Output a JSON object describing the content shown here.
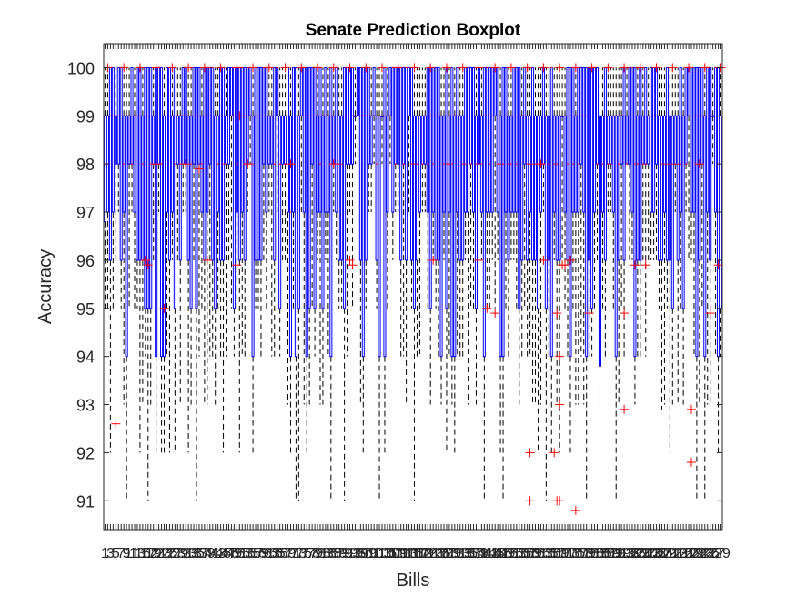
{
  "chart_data": {
    "type": "boxplot",
    "title": "Senate Prediction Boxplot",
    "xlabel": "Bills",
    "ylabel": "Accuracy",
    "ylim": [
      90.4,
      100.5
    ],
    "yticks": [
      91,
      92,
      93,
      94,
      95,
      96,
      97,
      98,
      99,
      100
    ],
    "grid": false,
    "legend": "none",
    "num_boxes": 230,
    "x_tick_labels": "crowded, illegible",
    "colors": {
      "box": "#0000ff",
      "whisker": "#000000",
      "outlier": "#ff0000",
      "median": "#ff0000"
    },
    "sample_boxes": [
      {
        "q1": 96.8,
        "median": 98.0,
        "q3": 99.0,
        "lower_whisker": 95.0,
        "upper_whisker": 100,
        "outliers": [
          92.6
        ]
      },
      {
        "q1": 97.0,
        "median": 99.0,
        "q3": 100,
        "lower_whisker": 94.0,
        "upper_whisker": 100,
        "outliers": [
          96.0
        ]
      },
      {
        "q1": 98.0,
        "median": 99.0,
        "q3": 100,
        "lower_whisker": 96.0,
        "upper_whisker": 100,
        "outliers": [
          95.0
        ]
      },
      {
        "q1": 94.0,
        "median": 97.0,
        "q3": 99.0,
        "lower_whisker": 92.0,
        "upper_whisker": 100,
        "outliers": []
      },
      {
        "q1": 98.0,
        "median": 99.0,
        "q3": 100,
        "lower_whisker": 95.0,
        "upper_whisker": 100,
        "outliers": [
          96.0
        ]
      },
      {
        "q1": 95.0,
        "median": 98.0,
        "q3": 99.0,
        "lower_whisker": 91.0,
        "upper_whisker": 100,
        "outliers": []
      },
      {
        "q1": 95.0,
        "median": 98.0,
        "q3": 99.0,
        "lower_whisker": 93.0,
        "upper_whisker": 100,
        "outliers": [
          92.0,
          91.0
        ]
      },
      {
        "q1": 95.0,
        "median": 98.0,
        "q3": 99.0,
        "lower_whisker": 92.0,
        "upper_whisker": 100,
        "outliers": [
          91.0
        ]
      },
      {
        "q1": 93.8,
        "median": 97.0,
        "q3": 99.0,
        "lower_whisker": 92.0,
        "upper_whisker": 100,
        "outliers": []
      },
      {
        "q1": 96.0,
        "median": 98.0,
        "q3": 99.0,
        "lower_whisker": 92.9,
        "upper_whisker": 100,
        "outliers": [
          92.9,
          91.8
        ]
      }
    ],
    "outlier_points": [
      {
        "x": 4,
        "y": 92.6
      },
      {
        "x": 15,
        "y": 96.0
      },
      {
        "x": 16,
        "y": 95.9
      },
      {
        "x": 19,
        "y": 98.0
      },
      {
        "x": 22,
        "y": 95.0
      },
      {
        "x": 30,
        "y": 98.0
      },
      {
        "x": 35,
        "y": 97.9
      },
      {
        "x": 38,
        "y": 96.0
      },
      {
        "x": 49,
        "y": 95.9
      },
      {
        "x": 50,
        "y": 99.0
      },
      {
        "x": 53,
        "y": 98.0
      },
      {
        "x": 69,
        "y": 98.0
      },
      {
        "x": 85,
        "y": 98.0
      },
      {
        "x": 91,
        "y": 96.0
      },
      {
        "x": 92,
        "y": 95.9
      },
      {
        "x": 122,
        "y": 96.0
      },
      {
        "x": 139,
        "y": 96.0
      },
      {
        "x": 142,
        "y": 95.0
      },
      {
        "x": 145,
        "y": 94.9
      },
      {
        "x": 158,
        "y": 92.0
      },
      {
        "x": 158,
        "y": 91.0
      },
      {
        "x": 162,
        "y": 98.0
      },
      {
        "x": 163,
        "y": 96.0
      },
      {
        "x": 167,
        "y": 92.0
      },
      {
        "x": 168,
        "y": 91.0
      },
      {
        "x": 168,
        "y": 94.9
      },
      {
        "x": 169,
        "y": 94.0
      },
      {
        "x": 169,
        "y": 93.0
      },
      {
        "x": 169,
        "y": 91.0
      },
      {
        "x": 170,
        "y": 95.9
      },
      {
        "x": 171,
        "y": 95.9
      },
      {
        "x": 173,
        "y": 96.0
      },
      {
        "x": 175,
        "y": 90.8
      },
      {
        "x": 180,
        "y": 94.9
      },
      {
        "x": 193,
        "y": 94.9
      },
      {
        "x": 193,
        "y": 92.9
      },
      {
        "x": 197,
        "y": 95.9
      },
      {
        "x": 201,
        "y": 95.9
      },
      {
        "x": 218,
        "y": 92.9
      },
      {
        "x": 218,
        "y": 91.8
      },
      {
        "x": 221,
        "y": 98.0
      },
      {
        "x": 225,
        "y": 94.9
      },
      {
        "x": 228,
        "y": 95.9
      }
    ]
  }
}
